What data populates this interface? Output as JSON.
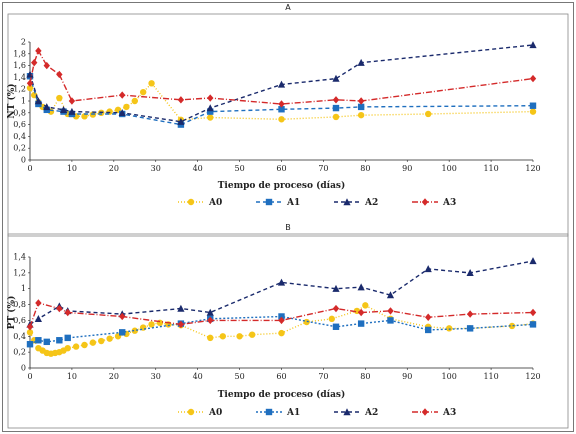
{
  "chart_data": [
    {
      "type": "line",
      "panel_label": "A",
      "xlabel": "Tiempo  de proceso  (días)",
      "ylabel": "NT (%)",
      "xlim": [
        0,
        120
      ],
      "ylim": [
        0,
        2
      ],
      "x_ticks": [
        0,
        10,
        20,
        30,
        40,
        50,
        60,
        70,
        80,
        90,
        100,
        110,
        120
      ],
      "y_ticks": [
        "0",
        "0,2",
        "0,4",
        "0,6",
        "0,8",
        "1",
        "1,2",
        "1,4",
        "1,6",
        "1,8",
        "2"
      ],
      "legend_position": "bottom",
      "grid": false,
      "series": [
        {
          "name": "A0",
          "color": "#f5c518",
          "dash": "1,2",
          "marker": "circle",
          "x": [
            0,
            1,
            2,
            3,
            5,
            7,
            9,
            11,
            13,
            15,
            17,
            19,
            21,
            23,
            25,
            27,
            29,
            36,
            43,
            60,
            73,
            79,
            95,
            120
          ],
          "y": [
            1.22,
            1.1,
            0.98,
            0.9,
            0.82,
            1.05,
            0.78,
            0.74,
            0.74,
            0.77,
            0.8,
            0.82,
            0.85,
            0.9,
            1.0,
            1.15,
            1.3,
            0.68,
            0.72,
            0.69,
            0.73,
            0.76,
            0.78,
            0.82
          ]
        },
        {
          "name": "A1",
          "color": "#1f6fbf",
          "dash": "4,3",
          "marker": "square",
          "x": [
            0,
            2,
            4,
            8,
            10,
            22,
            36,
            43,
            60,
            73,
            79,
            120
          ],
          "y": [
            1.42,
            0.95,
            0.85,
            0.82,
            0.78,
            0.78,
            0.6,
            0.82,
            0.86,
            0.88,
            0.9,
            0.92
          ]
        },
        {
          "name": "A2",
          "color": "#1a2a6c",
          "dash": "4,3",
          "marker": "triangle",
          "x": [
            0,
            2,
            4,
            8,
            10,
            22,
            36,
            43,
            60,
            73,
            79,
            120
          ],
          "y": [
            1.45,
            1.0,
            0.9,
            0.85,
            0.82,
            0.8,
            0.65,
            0.88,
            1.28,
            1.38,
            1.65,
            1.95
          ]
        },
        {
          "name": "A3",
          "color": "#d42a2a",
          "dash": "6,2,1,2",
          "marker": "diamond",
          "x": [
            0,
            1,
            2,
            4,
            7,
            10,
            22,
            36,
            43,
            60,
            73,
            79,
            120
          ],
          "y": [
            1.3,
            1.65,
            1.85,
            1.6,
            1.45,
            1.0,
            1.1,
            1.02,
            1.05,
            0.95,
            1.02,
            1.0,
            1.38
          ]
        }
      ]
    },
    {
      "type": "line",
      "panel_label": "B",
      "xlabel": "Tiempo  de proceso  (días)",
      "ylabel": "PT (%)",
      "xlim": [
        0,
        120
      ],
      "ylim": [
        0,
        1.4
      ],
      "x_ticks": [
        0,
        10,
        20,
        30,
        40,
        50,
        60,
        70,
        80,
        90,
        100,
        110,
        120
      ],
      "y_ticks": [
        "0",
        "0,2",
        "0,4",
        "0,6",
        "0,8",
        "1",
        "1,2",
        "1,4"
      ],
      "legend_position": "bottom",
      "grid": false,
      "series": [
        {
          "name": "A0",
          "color": "#f5c518",
          "dash": "1,2",
          "marker": "circle",
          "x": [
            0,
            1,
            2,
            3,
            4,
            5,
            6,
            7,
            8,
            9,
            11,
            13,
            15,
            17,
            19,
            21,
            23,
            25,
            27,
            29,
            31,
            33,
            36,
            43,
            46,
            50,
            53,
            60,
            66,
            72,
            78,
            80,
            86,
            95,
            100,
            105,
            115,
            120
          ],
          "y": [
            0.45,
            0.35,
            0.25,
            0.22,
            0.19,
            0.18,
            0.19,
            0.2,
            0.22,
            0.25,
            0.27,
            0.29,
            0.32,
            0.34,
            0.37,
            0.4,
            0.43,
            0.47,
            0.51,
            0.55,
            0.57,
            0.55,
            0.54,
            0.38,
            0.4,
            0.4,
            0.42,
            0.44,
            0.58,
            0.62,
            0.72,
            0.79,
            0.62,
            0.52,
            0.5,
            0.5,
            0.53,
            0.56
          ]
        },
        {
          "name": "A1",
          "color": "#1f6fbf",
          "dash": "2,2",
          "marker": "square",
          "x": [
            0,
            2,
            4,
            7,
            9,
            22,
            36,
            43,
            60,
            73,
            79,
            86,
            95,
            105,
            120
          ],
          "y": [
            0.3,
            0.35,
            0.33,
            0.35,
            0.38,
            0.45,
            0.56,
            0.62,
            0.65,
            0.52,
            0.56,
            0.6,
            0.48,
            0.5,
            0.55
          ]
        },
        {
          "name": "A2",
          "color": "#1a2a6c",
          "dash": "4,3",
          "marker": "triangle",
          "x": [
            0,
            2,
            7,
            9,
            22,
            36,
            43,
            60,
            73,
            79,
            86,
            95,
            105,
            120
          ],
          "y": [
            0.55,
            0.62,
            0.78,
            0.72,
            0.68,
            0.75,
            0.7,
            1.08,
            1.0,
            1.02,
            0.92,
            1.25,
            1.2,
            1.35
          ]
        },
        {
          "name": "A3",
          "color": "#d42a2a",
          "dash": "6,2,1,2",
          "marker": "diamond",
          "x": [
            0,
            2,
            7,
            9,
            22,
            36,
            43,
            60,
            73,
            79,
            86,
            95,
            105,
            120
          ],
          "y": [
            0.52,
            0.82,
            0.75,
            0.7,
            0.65,
            0.55,
            0.6,
            0.6,
            0.75,
            0.7,
            0.72,
            0.64,
            0.68,
            0.7
          ]
        }
      ]
    }
  ]
}
